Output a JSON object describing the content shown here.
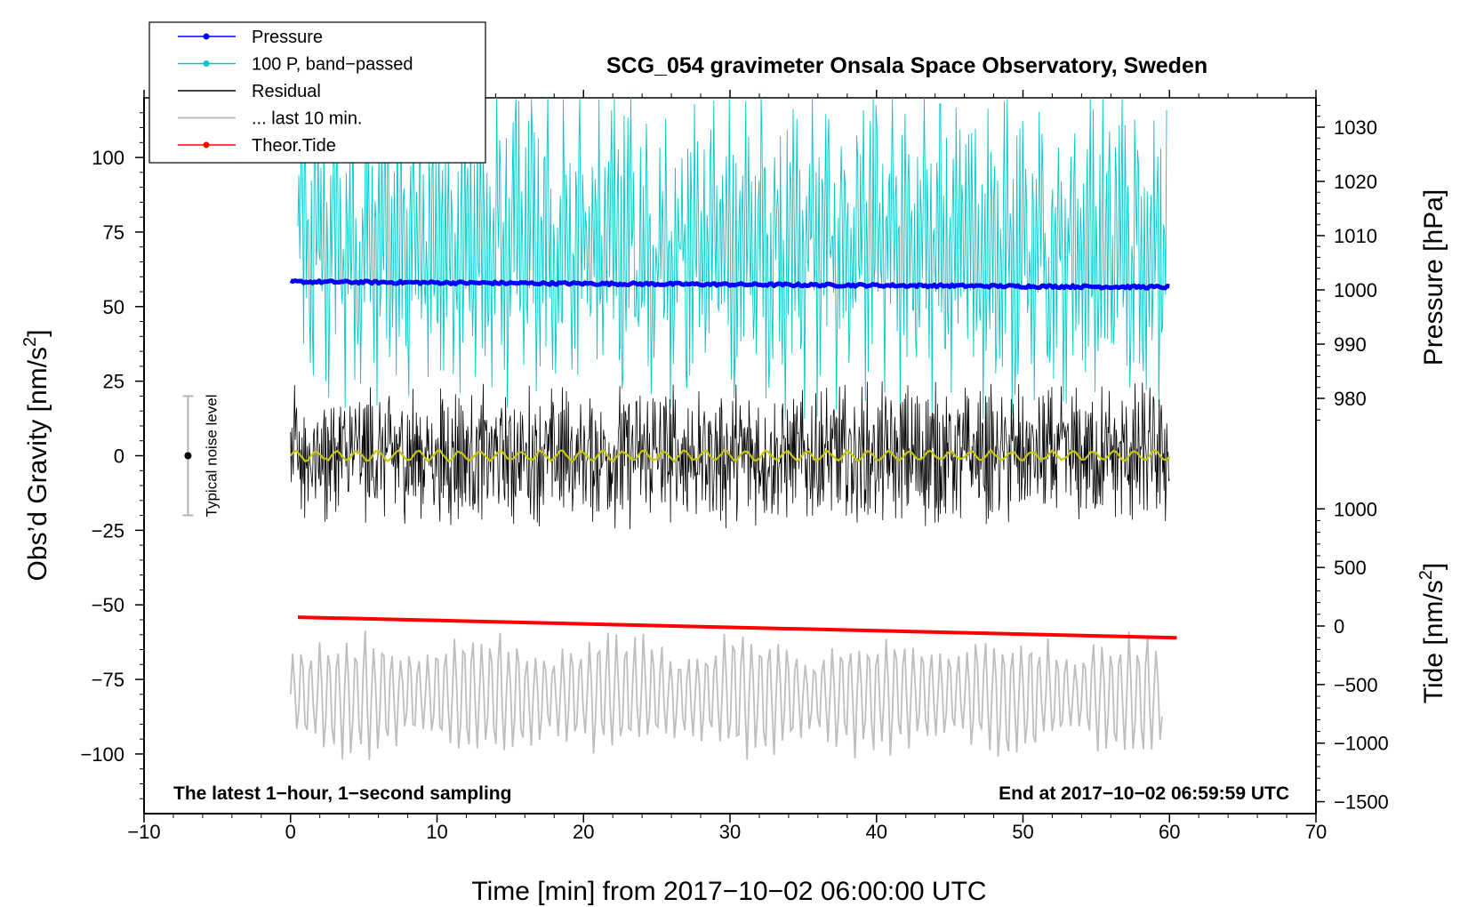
{
  "chart_data": {
    "type": "line",
    "title": "SCG_054 gravimeter Onsala Space Observatory, Sweden",
    "xlabel": "Time [min] from 2017−10−02 06:00:00 UTC",
    "ylabel_left": "Obs’d Gravity [nm/s",
    "ylabel_left_sup": "2",
    "ylabel_left_end": "]",
    "ylabel_right_pressure": "Pressure [hPa]",
    "ylabel_right_tide": "Tide [nm/s",
    "ylabel_right_tide_sup": "2",
    "ylabel_right_tide_end": "]",
    "xlim": [
      -10,
      70
    ],
    "ylim_left": [
      -120,
      120
    ],
    "pressure_axis": {
      "units": "hPa",
      "ticks": [
        980,
        990,
        1000,
        1010,
        1020,
        1030
      ],
      "labels": [
        "980",
        "990",
        "1000",
        "1010",
        "1020",
        "1030"
      ]
    },
    "tide_axis": {
      "units": "nm/s2",
      "ticks": [
        -1500,
        -1000,
        -500,
        0,
        500,
        1000
      ],
      "labels": [
        "−1500",
        "−1000",
        "−500",
        "0",
        "500",
        "1000"
      ]
    },
    "x_ticks": [
      -10,
      0,
      10,
      20,
      30,
      40,
      50,
      60,
      70
    ],
    "x_tick_labels": [
      "−10",
      "0",
      "10",
      "20",
      "30",
      "40",
      "50",
      "60",
      "70"
    ],
    "y_ticks": [
      -100,
      -75,
      -50,
      -25,
      0,
      25,
      50,
      75,
      100
    ],
    "y_tick_labels": [
      "−100",
      "−75",
      "−50",
      "−25",
      "0",
      "25",
      "50",
      "75",
      "100"
    ],
    "note_left": "The latest 1−hour, 1−second sampling",
    "note_right": "End at 2017−10−02 06:59:59 UTC",
    "noise_label": "Typical noise level",
    "noise_bar": {
      "x": -7,
      "center": 0,
      "halfwidth": 20
    },
    "legend": [
      {
        "label": "Pressure",
        "color": "#0000ff",
        "marker": true
      },
      {
        "label": "100 P, band−passed",
        "color": "#00c8c8",
        "marker": true
      },
      {
        "label": "Residual",
        "color": "#000000",
        "marker": false
      },
      {
        "label": "... last 10 min.",
        "color": "#bebebe",
        "marker": false
      },
      {
        "label": "Theor.Tide",
        "color": "#ff0000",
        "marker": true
      }
    ],
    "series": [
      {
        "name": "Pressure",
        "axis": "pressure",
        "color": "#0000ff",
        "x_range": [
          0,
          60
        ],
        "start": 1001.5,
        "end": 1000.5,
        "noise": 0.5
      },
      {
        "name": "100 P, band−passed",
        "axis": "left",
        "color": "#00c8c8",
        "x_range": [
          0.5,
          59.8
        ],
        "center": 70,
        "amplitude": 50
      },
      {
        "name": "Residual",
        "axis": "left",
        "color": "#000000",
        "x_range": [
          0,
          60
        ],
        "center": 0,
        "amplitude": 22
      },
      {
        "name": "Residual (smoothed)",
        "axis": "left",
        "color": "#c8c800",
        "x_range": [
          0,
          60
        ],
        "center": 0,
        "amplitude": 2
      },
      {
        "name": "... last 10 min.",
        "axis": "left",
        "color": "#bebebe",
        "x_range": [
          0,
          59.5
        ],
        "center": -80,
        "amplitude": 18
      },
      {
        "name": "Theor.Tide",
        "axis": "tide",
        "color": "#ff0000",
        "x_range": [
          0.5,
          60.5
        ],
        "start": 75,
        "end": -100
      }
    ]
  }
}
